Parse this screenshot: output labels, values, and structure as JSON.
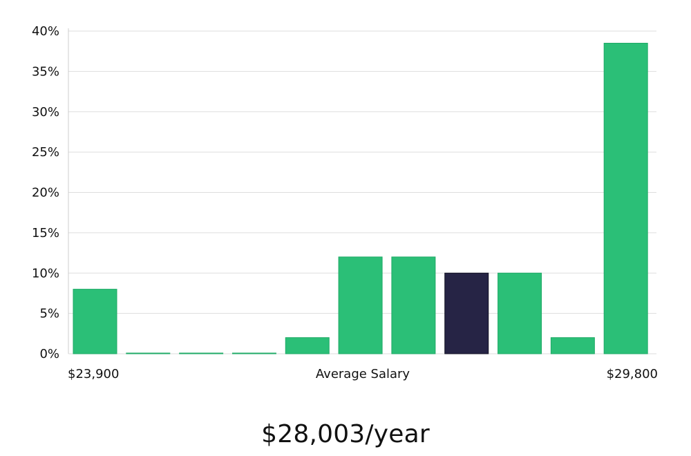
{
  "chart_data": {
    "type": "bar",
    "categories": [
      "1",
      "2",
      "3",
      "4",
      "5",
      "6",
      "7",
      "8",
      "9",
      "10",
      "11"
    ],
    "values": [
      8,
      0,
      0,
      0,
      2,
      12,
      12,
      10,
      10,
      2,
      38.5
    ],
    "highlight_index": 7,
    "ylim": [
      0,
      40
    ],
    "yticks": [
      0,
      5,
      10,
      15,
      20,
      25,
      30,
      35,
      40
    ],
    "ytick_suffix": "%",
    "grid": true,
    "xlabel_left": "$23,900",
    "xlabel_center": "Average Salary",
    "xlabel_right": "$29,800",
    "colors": {
      "bar": "#2bbf77",
      "bar_edge": "#1faa66",
      "highlight": "#262445",
      "grid": "#dddddd",
      "axis": "#cccccc"
    }
  },
  "summary": {
    "average_salary": "$28,003/year"
  }
}
